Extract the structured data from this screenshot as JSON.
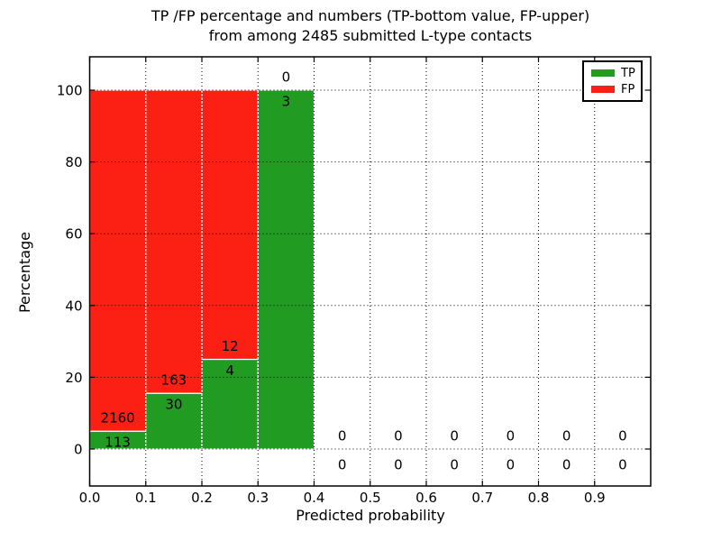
{
  "title": {
    "line1": "TP /FP percentage and numbers (TP-bottom value, FP-upper)",
    "line2": "from among 2485 submitted L-type contacts"
  },
  "axes": {
    "xlabel": "Predicted probability",
    "ylabel": "Percentage",
    "xtick_labels": [
      "0.0",
      "0.1",
      "0.2",
      "0.3",
      "0.4",
      "0.5",
      "0.6",
      "0.7",
      "0.8",
      "0.9"
    ],
    "xtick_values": [
      0.0,
      0.1,
      0.2,
      0.3,
      0.4,
      0.5,
      0.6,
      0.7,
      0.8,
      0.9
    ],
    "ytick_labels": [
      "0",
      "20",
      "40",
      "60",
      "80",
      "100"
    ],
    "ytick_values": [
      0,
      20,
      40,
      60,
      80,
      100
    ]
  },
  "legend": {
    "position": "upper right",
    "items": [
      {
        "label": "TP",
        "color": "#229b22"
      },
      {
        "label": "FP",
        "color": "#fb1f14"
      }
    ]
  },
  "chart_data": {
    "type": "bar",
    "stacked": true,
    "title": "TP /FP percentage and numbers (TP-bottom value, FP-upper) from among 2485 submitted L-type contacts",
    "xlabel": "Predicted probability",
    "ylabel": "Percentage",
    "total_submitted_contacts": 2485,
    "bin_width": 0.1,
    "xlim": [
      0.0,
      1.0
    ],
    "ylim": [
      -10.5,
      109.5
    ],
    "grid": true,
    "grid_style": "dotted",
    "legend_position": "upper right",
    "annotation_note": "TP count printed at bottom of each bin, FP count printed above it; bars show TP/FP as percent of bin total",
    "bins": [
      {
        "range": [
          0.0,
          0.1
        ],
        "tp": 113,
        "fp": 2160
      },
      {
        "range": [
          0.1,
          0.2
        ],
        "tp": 30,
        "fp": 163
      },
      {
        "range": [
          0.2,
          0.3
        ],
        "tp": 4,
        "fp": 12
      },
      {
        "range": [
          0.3,
          0.4
        ],
        "tp": 3,
        "fp": 0
      },
      {
        "range": [
          0.4,
          0.5
        ],
        "tp": 0,
        "fp": 0
      },
      {
        "range": [
          0.5,
          0.6
        ],
        "tp": 0,
        "fp": 0
      },
      {
        "range": [
          0.6,
          0.7
        ],
        "tp": 0,
        "fp": 0
      },
      {
        "range": [
          0.7,
          0.8
        ],
        "tp": 0,
        "fp": 0
      },
      {
        "range": [
          0.8,
          0.9
        ],
        "tp": 0,
        "fp": 0
      },
      {
        "range": [
          0.9,
          1.0
        ],
        "tp": 0,
        "fp": 0
      }
    ],
    "series": [
      {
        "name": "TP",
        "color": "#229b22",
        "values_pct": [
          4.97,
          15.54,
          25.0,
          100.0,
          0,
          0,
          0,
          0,
          0,
          0
        ]
      },
      {
        "name": "FP",
        "color": "#fb1f14",
        "values_pct": [
          95.03,
          84.46,
          75.0,
          0.0,
          0,
          0,
          0,
          0,
          0,
          0
        ]
      }
    ]
  }
}
